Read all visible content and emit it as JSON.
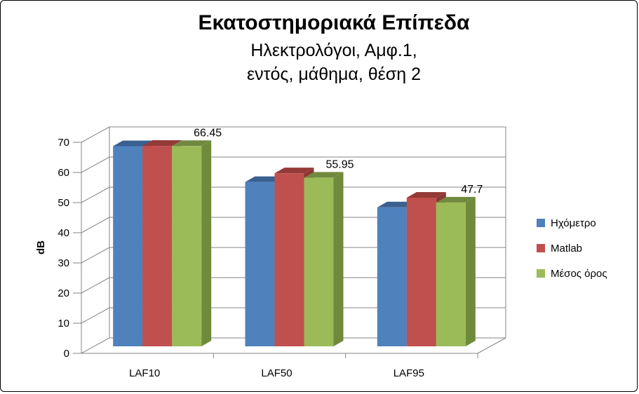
{
  "chart_data": {
    "type": "bar",
    "title": "Εκατοστημοριακά Επίπεδα",
    "subtitle_lines": [
      "Ηλεκτρολόγοι, Αμφ.1,",
      "εντός, μάθημα, θέση 2"
    ],
    "xlabel": "",
    "ylabel": "dB",
    "ylim": [
      0,
      70
    ],
    "yticks": [
      0,
      10,
      20,
      30,
      40,
      50,
      60,
      70
    ],
    "grid": true,
    "legend_position": "right",
    "three_d": true,
    "categories": [
      "LAF10",
      "LAF50",
      "LAF95"
    ],
    "series": [
      {
        "name": "Ηχόμετρο",
        "values": [
          66.4,
          54.5,
          46.1
        ],
        "color": "#4F81BD",
        "side_color": "#385D8A",
        "top_color": "#3A6090"
      },
      {
        "name": "Matlab",
        "values": [
          66.5,
          57.4,
          49.3
        ],
        "color": "#C0504D",
        "side_color": "#8C3836",
        "top_color": "#943A37"
      },
      {
        "name": "Μέσος όρος",
        "values": [
          66.45,
          55.95,
          47.7
        ],
        "color": "#9BBB59",
        "side_color": "#6E8A3A",
        "top_color": "#71893F"
      }
    ],
    "data_labels": [
      {
        "series": 2,
        "category": 0,
        "text": "66.45"
      },
      {
        "series": 2,
        "category": 1,
        "text": "55.95"
      },
      {
        "series": 2,
        "category": 2,
        "text": "47.7"
      }
    ]
  }
}
